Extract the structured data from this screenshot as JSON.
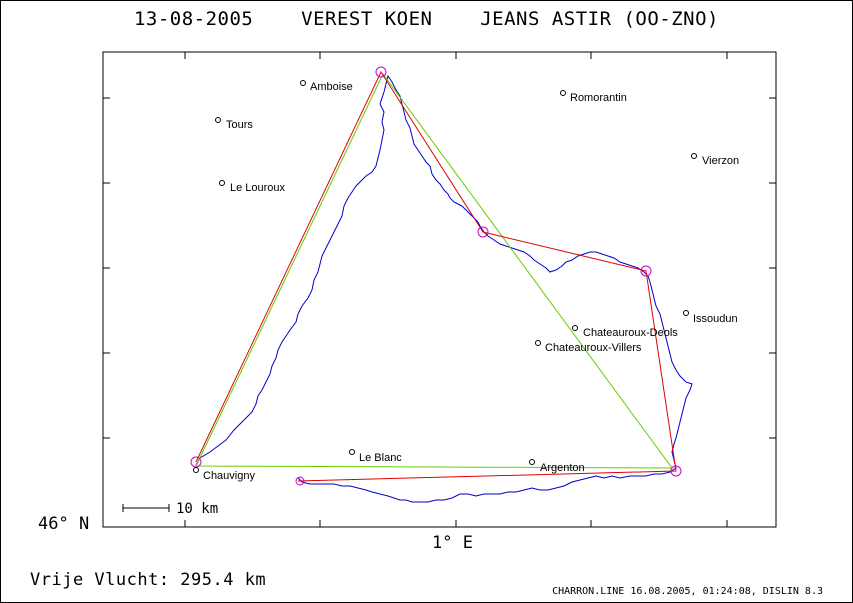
{
  "title": "13-08-2005    VEREST KOEN    JEANS ASTIR (OO-ZNO)",
  "axes": {
    "lat_label": "46° N",
    "lon_label": "1° E"
  },
  "scale_bar": {
    "label": "10 km"
  },
  "footer": {
    "distance_text": "Vrije Vlucht:  295.4 km",
    "credit": "CHARRON.LINE 16.08.2005, 01:24:08, DISLIN 8.3"
  },
  "colors": {
    "track": "#0000cc",
    "task_line": "#e00000",
    "free_line": "#66cc00",
    "turnpoint": "#cc00cc"
  },
  "towns": [
    {
      "name": "Amboise"
    },
    {
      "name": "Romorantin"
    },
    {
      "name": "Tours"
    },
    {
      "name": "Vierzon"
    },
    {
      "name": "Le Louroux"
    },
    {
      "name": "Issoudun"
    },
    {
      "name": "Chateauroux-Deols"
    },
    {
      "name": "Chateauroux-Villers"
    },
    {
      "name": "Le Blanc"
    },
    {
      "name": "Argenton"
    },
    {
      "name": "Chauvigny"
    }
  ]
}
